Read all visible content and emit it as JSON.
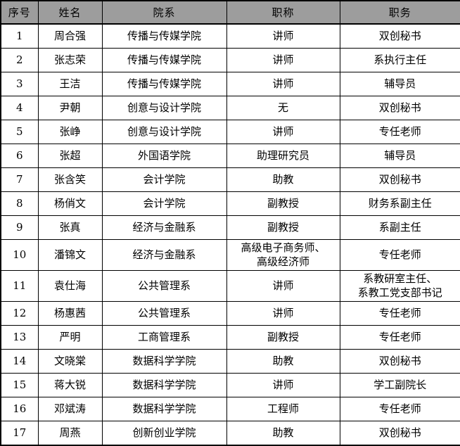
{
  "chart_data": {
    "type": "table",
    "title": "",
    "columns": [
      {
        "key": "number",
        "label": "序号"
      },
      {
        "key": "name",
        "label": "姓名"
      },
      {
        "key": "department",
        "label": "院系"
      },
      {
        "key": "title",
        "label": "职称"
      },
      {
        "key": "position",
        "label": "职务"
      }
    ],
    "rows": [
      {
        "number": "1",
        "name": "周合强",
        "department": "传播与传媒学院",
        "title": "讲师",
        "position": "双创秘书"
      },
      {
        "number": "2",
        "name": "张志荣",
        "department": "传播与传媒学院",
        "title": "讲师",
        "position": "系执行主任"
      },
      {
        "number": "3",
        "name": "王洁",
        "department": "传播与传媒学院",
        "title": "讲师",
        "position": "辅导员"
      },
      {
        "number": "4",
        "name": "尹朝",
        "department": "创意与设计学院",
        "title": "无",
        "position": "双创秘书"
      },
      {
        "number": "5",
        "name": "张峥",
        "department": "创意与设计学院",
        "title": "讲师",
        "position": "专任老师"
      },
      {
        "number": "6",
        "name": "张超",
        "department": "外国语学院",
        "title": "助理研究员",
        "position": "辅导员"
      },
      {
        "number": "7",
        "name": "张含笑",
        "department": "会计学院",
        "title": "助教",
        "position": "双创秘书"
      },
      {
        "number": "8",
        "name": "杨俏文",
        "department": "会计学院",
        "title": "副教授",
        "position": "财务系副主任"
      },
      {
        "number": "9",
        "name": "张真",
        "department": "经济与金融系",
        "title": "副教授",
        "position": "系副主任"
      },
      {
        "number": "10",
        "name": "潘锦文",
        "department": "经济与金融系",
        "title": "高级电子商务师、\n高级经济师",
        "position": "专任老师"
      },
      {
        "number": "11",
        "name": "袁仕海",
        "department": "公共管理系",
        "title": "讲师",
        "position": "系教研室主任、\n系教工党支部书记"
      },
      {
        "number": "12",
        "name": "杨惠茜",
        "department": "公共管理系",
        "title": "讲师",
        "position": "专任老师"
      },
      {
        "number": "13",
        "name": "严明",
        "department": "工商管理系",
        "title": "副教授",
        "position": "专任老师"
      },
      {
        "number": "14",
        "name": "文晓棠",
        "department": "数据科学学院",
        "title": "助教",
        "position": "双创秘书"
      },
      {
        "number": "15",
        "name": "蒋大锐",
        "department": "数据科学学院",
        "title": "讲师",
        "position": "学工副院长"
      },
      {
        "number": "16",
        "name": "邓斌涛",
        "department": "数据科学学院",
        "title": "工程师",
        "position": "专任老师"
      },
      {
        "number": "17",
        "name": "周燕",
        "department": "创新创业学院",
        "title": "助教",
        "position": "双创秘书"
      }
    ],
    "layout": {
      "header_bg": "#9d9d9d",
      "row_bg": "#ffffff",
      "border_color": "#000000",
      "text_color": "#000000"
    }
  }
}
